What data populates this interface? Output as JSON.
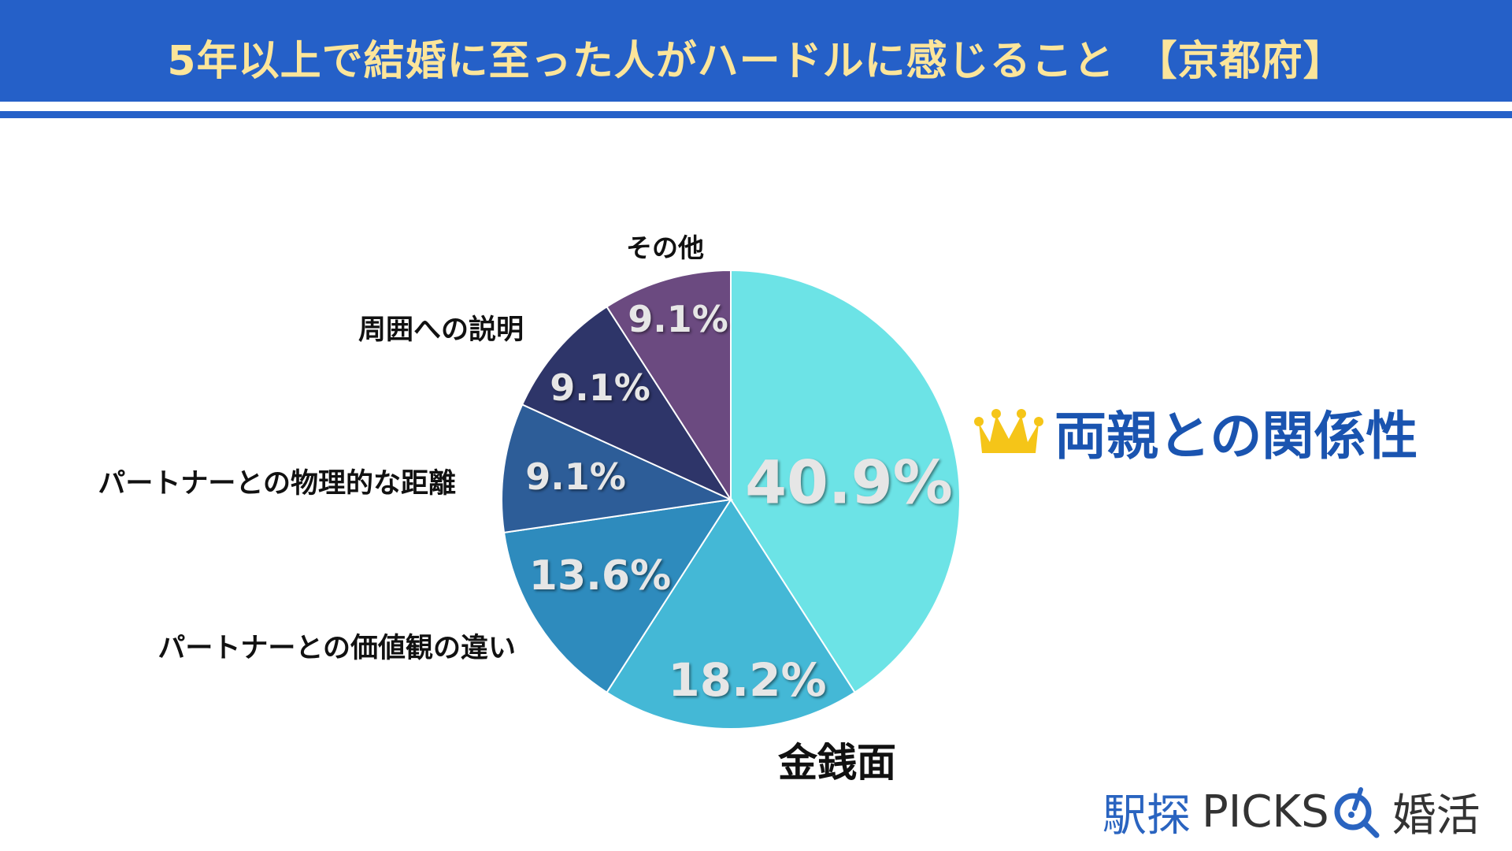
{
  "header": {
    "title": "5年以上で結婚に至った人がハードルに感じること　【京都府】"
  },
  "colors": {
    "header": "#2560c8",
    "title": "#fce59a",
    "winner": "#1a54b0",
    "crown": "#f5c518"
  },
  "chart_data": {
    "type": "pie",
    "title": "5年以上で結婚に至った人がハードルに感じること　【京都府】",
    "start": "top",
    "direction": "clockwise",
    "slices": [
      {
        "label": "両親との関係性",
        "value": 40.9,
        "display": "40.9%",
        "color": "#6ce3e6"
      },
      {
        "label": "金銭面",
        "value": 18.2,
        "display": "18.2%",
        "color": "#44b8d6"
      },
      {
        "label": "パートナーとの価値観の違い",
        "value": 13.6,
        "display": "13.6%",
        "color": "#2e8bbd"
      },
      {
        "label": "パートナーとの物理的な距離",
        "value": 9.1,
        "display": "9.1%",
        "color": "#2d5d98"
      },
      {
        "label": "周囲への説明",
        "value": 9.1,
        "display": "9.1%",
        "color": "#2e3569"
      },
      {
        "label": "その他",
        "value": 9.1,
        "display": "9.1%",
        "color": "#6b4a80"
      }
    ]
  },
  "winner": {
    "icon": "crown-icon"
  },
  "logo": {
    "part1": "駅探",
    "part2": "PICKS",
    "part3": "婚活",
    "icon": "search-magnifier-icon"
  }
}
